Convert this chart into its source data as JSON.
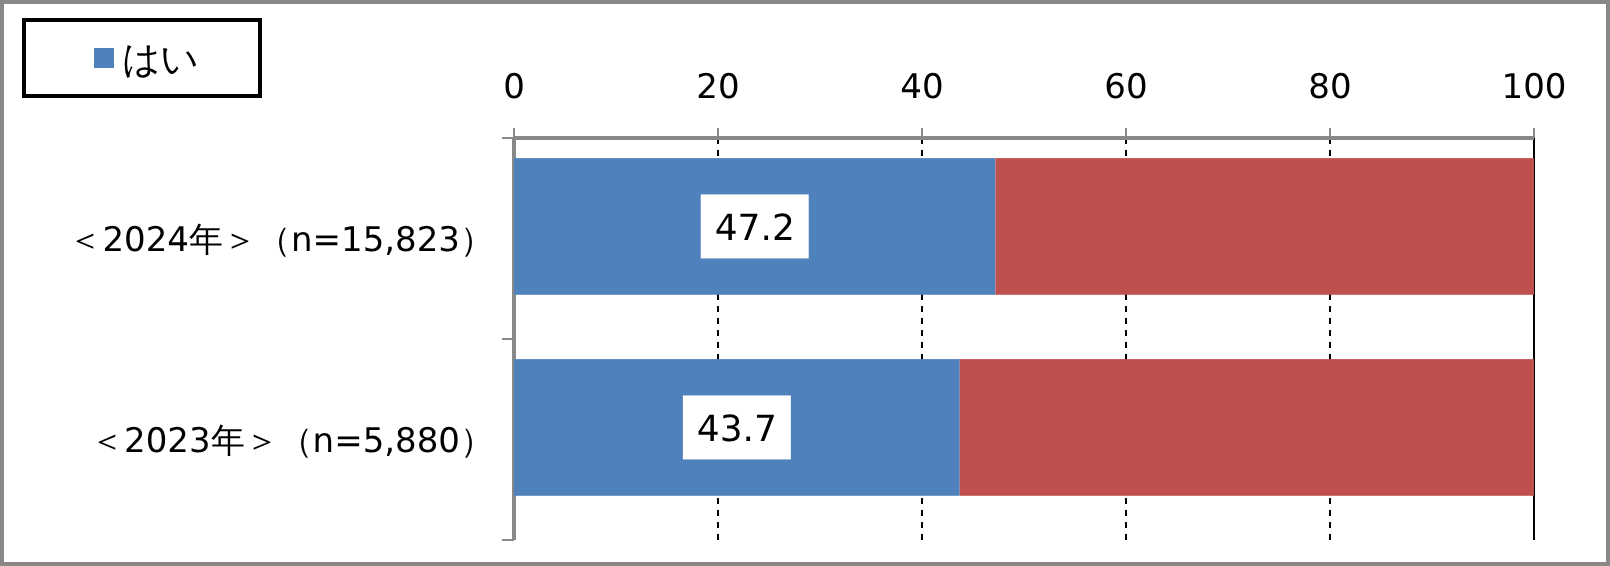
{
  "chart_data": {
    "type": "bar",
    "orientation": "horizontal",
    "stacked": true,
    "categories": [
      "＜2024年＞（n=15,823）",
      "＜2023年＞（n=5,880）"
    ],
    "series": [
      {
        "name": "はい",
        "color": "#4f81bd",
        "values": [
          47.2,
          43.7
        ],
        "value_labels": [
          "47.2",
          "43.7"
        ]
      },
      {
        "color": "#c0504d",
        "values": [
          52.8,
          56.3
        ]
      }
    ],
    "xlim": [
      0,
      100
    ],
    "xticks": [
      0,
      20,
      40,
      60,
      80,
      100
    ],
    "grid": "x",
    "legend": "top left"
  }
}
